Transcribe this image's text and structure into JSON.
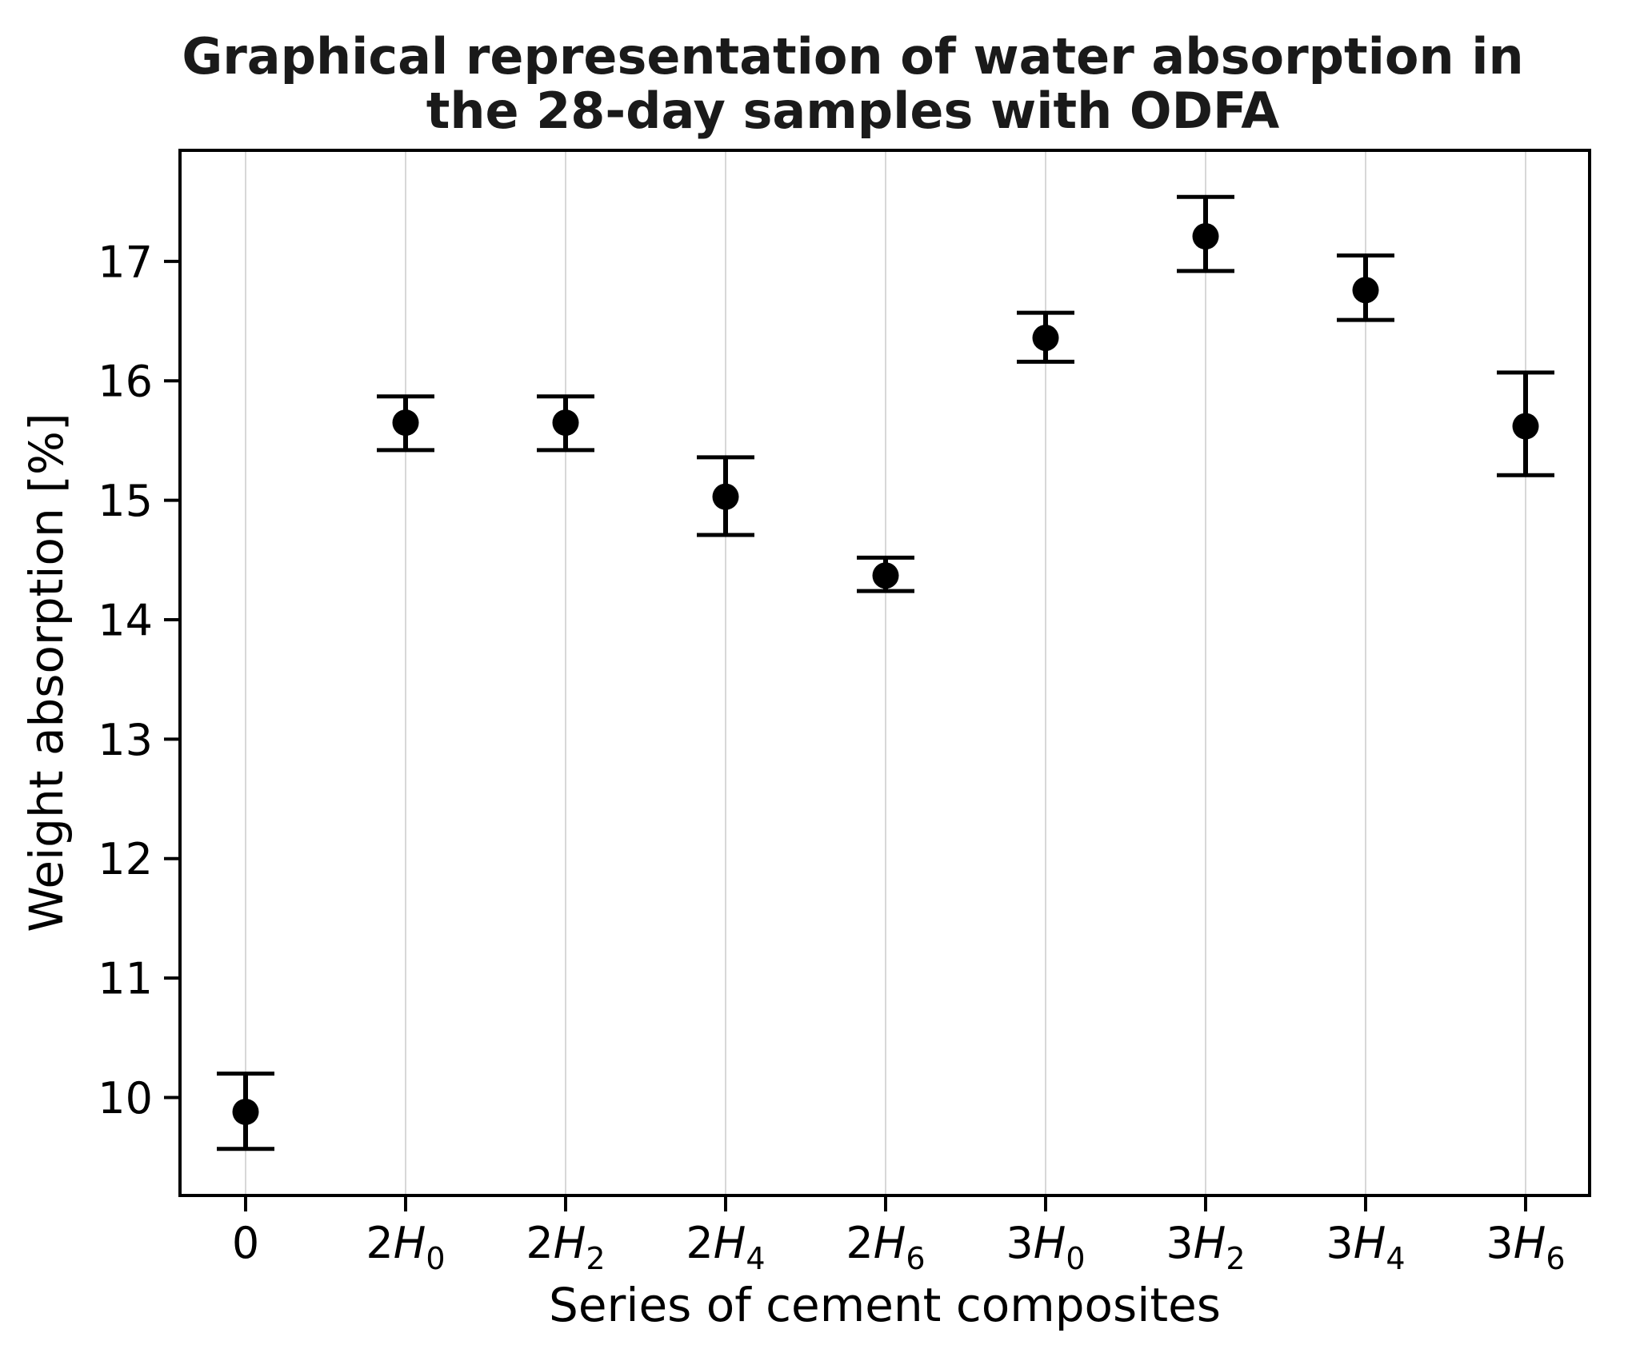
{
  "chart_data": {
    "type": "scatter",
    "title": "Graphical representation of water absorption in the 28-day samples with ODFA",
    "title_lines": [
      "Graphical representation of water absorption in",
      "the 28-day samples with ODFA"
    ],
    "xlabel": "Series of cement composites",
    "ylabel": "Weight absorption [%]",
    "categories": [
      "0",
      "2H0",
      "2H2",
      "2H4",
      "2H6",
      "3H0",
      "3H2",
      "3H4",
      "3H6"
    ],
    "category_parts": [
      {
        "pre": "0",
        "it": "",
        "sub": ""
      },
      {
        "pre": "2",
        "it": "H",
        "sub": "0"
      },
      {
        "pre": "2",
        "it": "H",
        "sub": "2"
      },
      {
        "pre": "2",
        "it": "H",
        "sub": "4"
      },
      {
        "pre": "2",
        "it": "H",
        "sub": "6"
      },
      {
        "pre": "3",
        "it": "H",
        "sub": "0"
      },
      {
        "pre": "3",
        "it": "H",
        "sub": "2"
      },
      {
        "pre": "3",
        "it": "H",
        "sub": "4"
      },
      {
        "pre": "3",
        "it": "H",
        "sub": "6"
      }
    ],
    "values": [
      9.88,
      15.65,
      15.65,
      15.03,
      14.37,
      16.36,
      17.21,
      16.76,
      15.62
    ],
    "err_up": [
      0.32,
      0.22,
      0.22,
      0.33,
      0.15,
      0.21,
      0.33,
      0.29,
      0.45
    ],
    "err_down": [
      0.31,
      0.23,
      0.23,
      0.32,
      0.13,
      0.2,
      0.29,
      0.25,
      0.41
    ],
    "yticks": [
      10,
      11,
      12,
      13,
      14,
      15,
      16,
      17
    ],
    "ylim": [
      9.18,
      17.93
    ],
    "grid": "vertical-only",
    "legend": "none",
    "marker": "filled-black-circle",
    "colors": {
      "marker": "#000000",
      "error_bar": "#000000",
      "axis": "#000000",
      "gridline": "#d8d8d8",
      "title_text": "#1a1a1a",
      "background": "#ffffff"
    }
  }
}
